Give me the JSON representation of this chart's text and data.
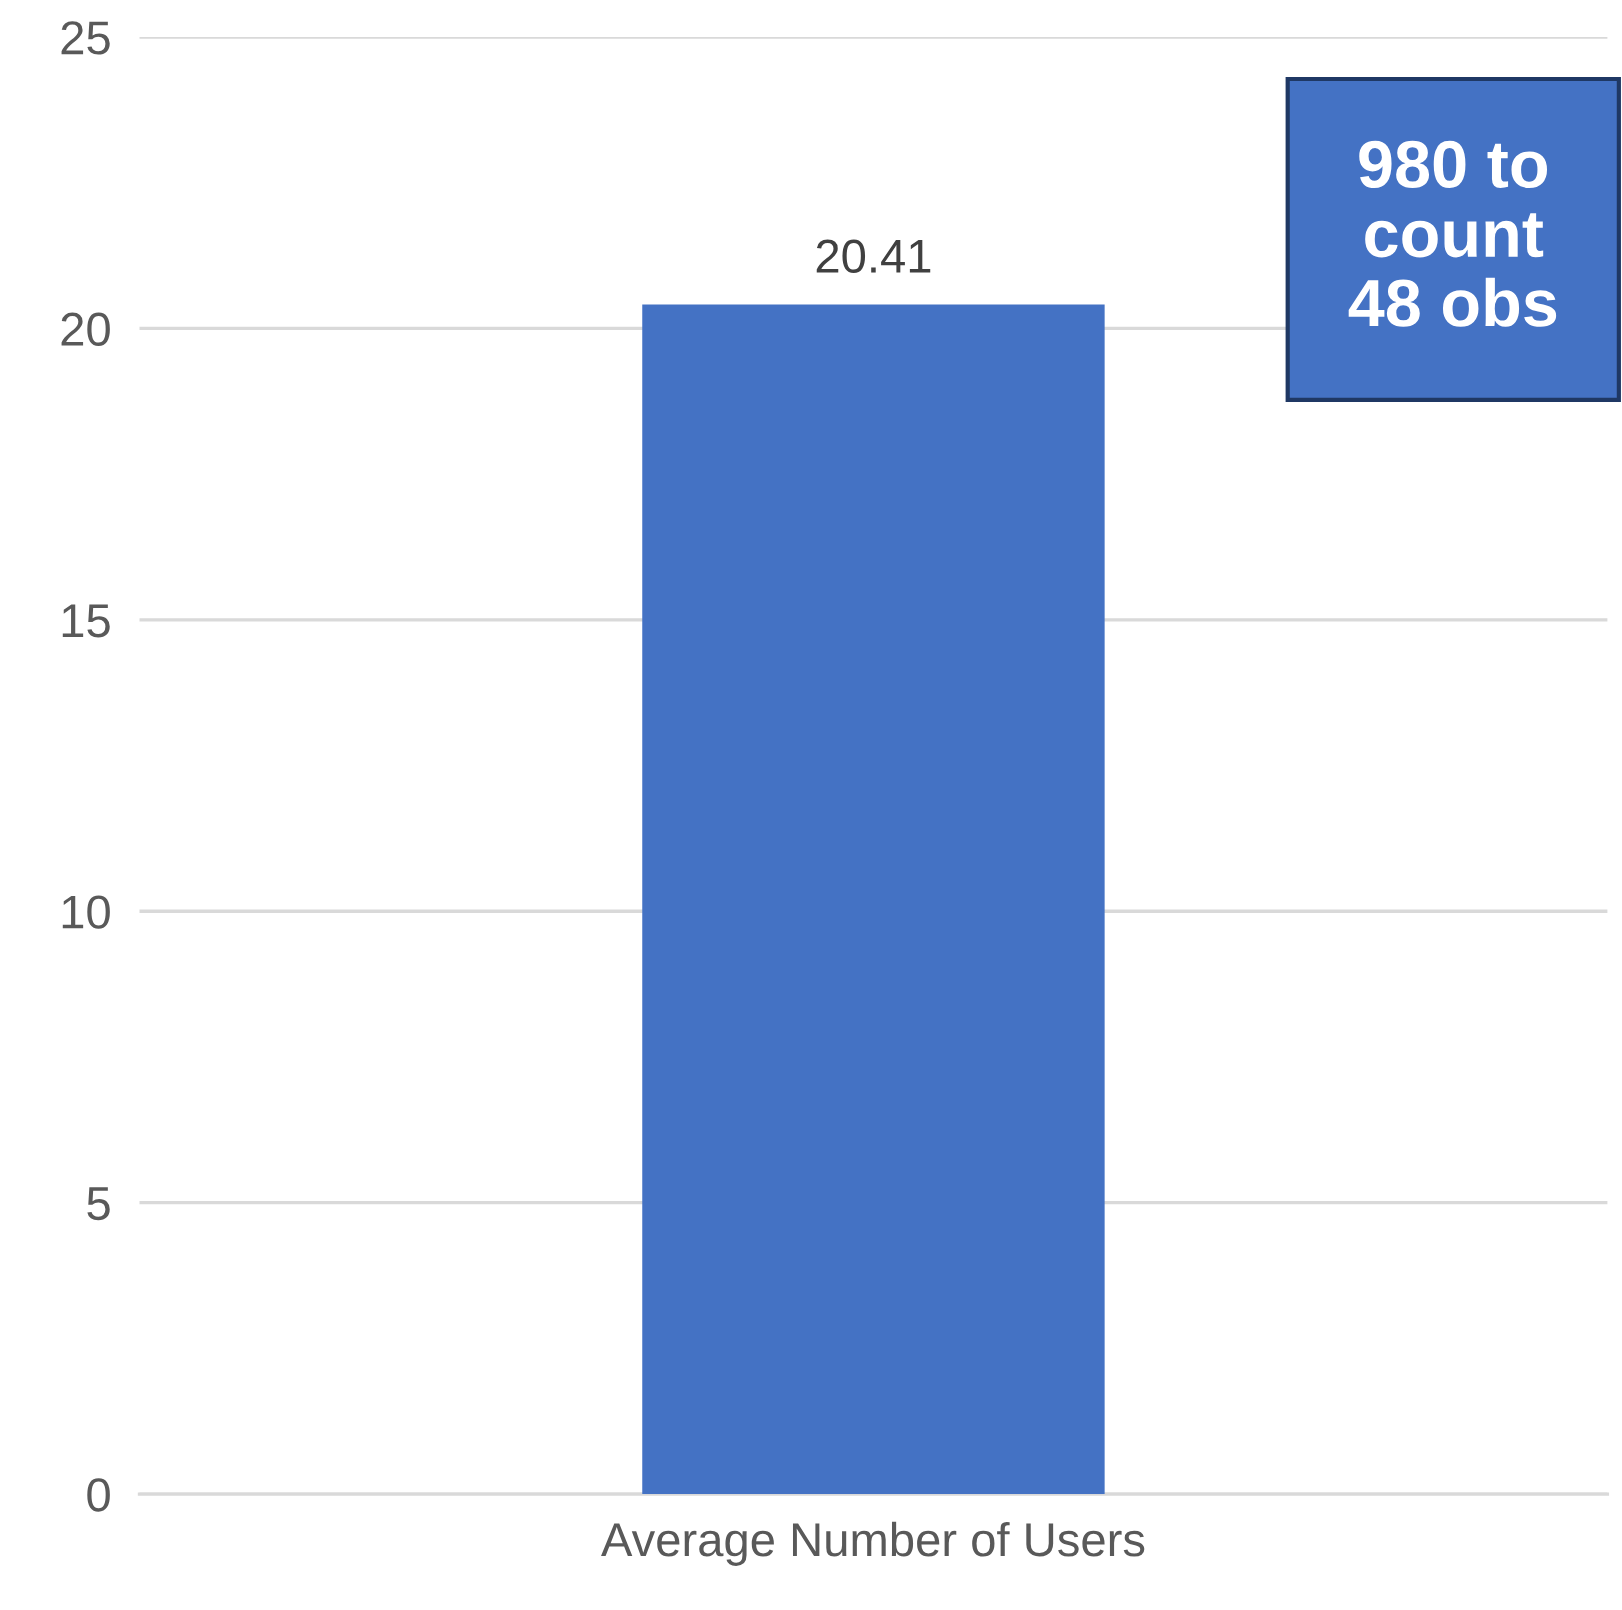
{
  "chart_data": {
    "type": "bar",
    "categories": [
      "Average Number of Users"
    ],
    "values": [
      20.41
    ],
    "color": "#4472c4",
    "data_labels": true,
    "ylim": [
      0,
      25
    ],
    "yticks": [
      0,
      5,
      10,
      15,
      20,
      25
    ],
    "grid": "y",
    "annotations": [
      "980 to\ncount\n48 obs"
    ]
  }
}
